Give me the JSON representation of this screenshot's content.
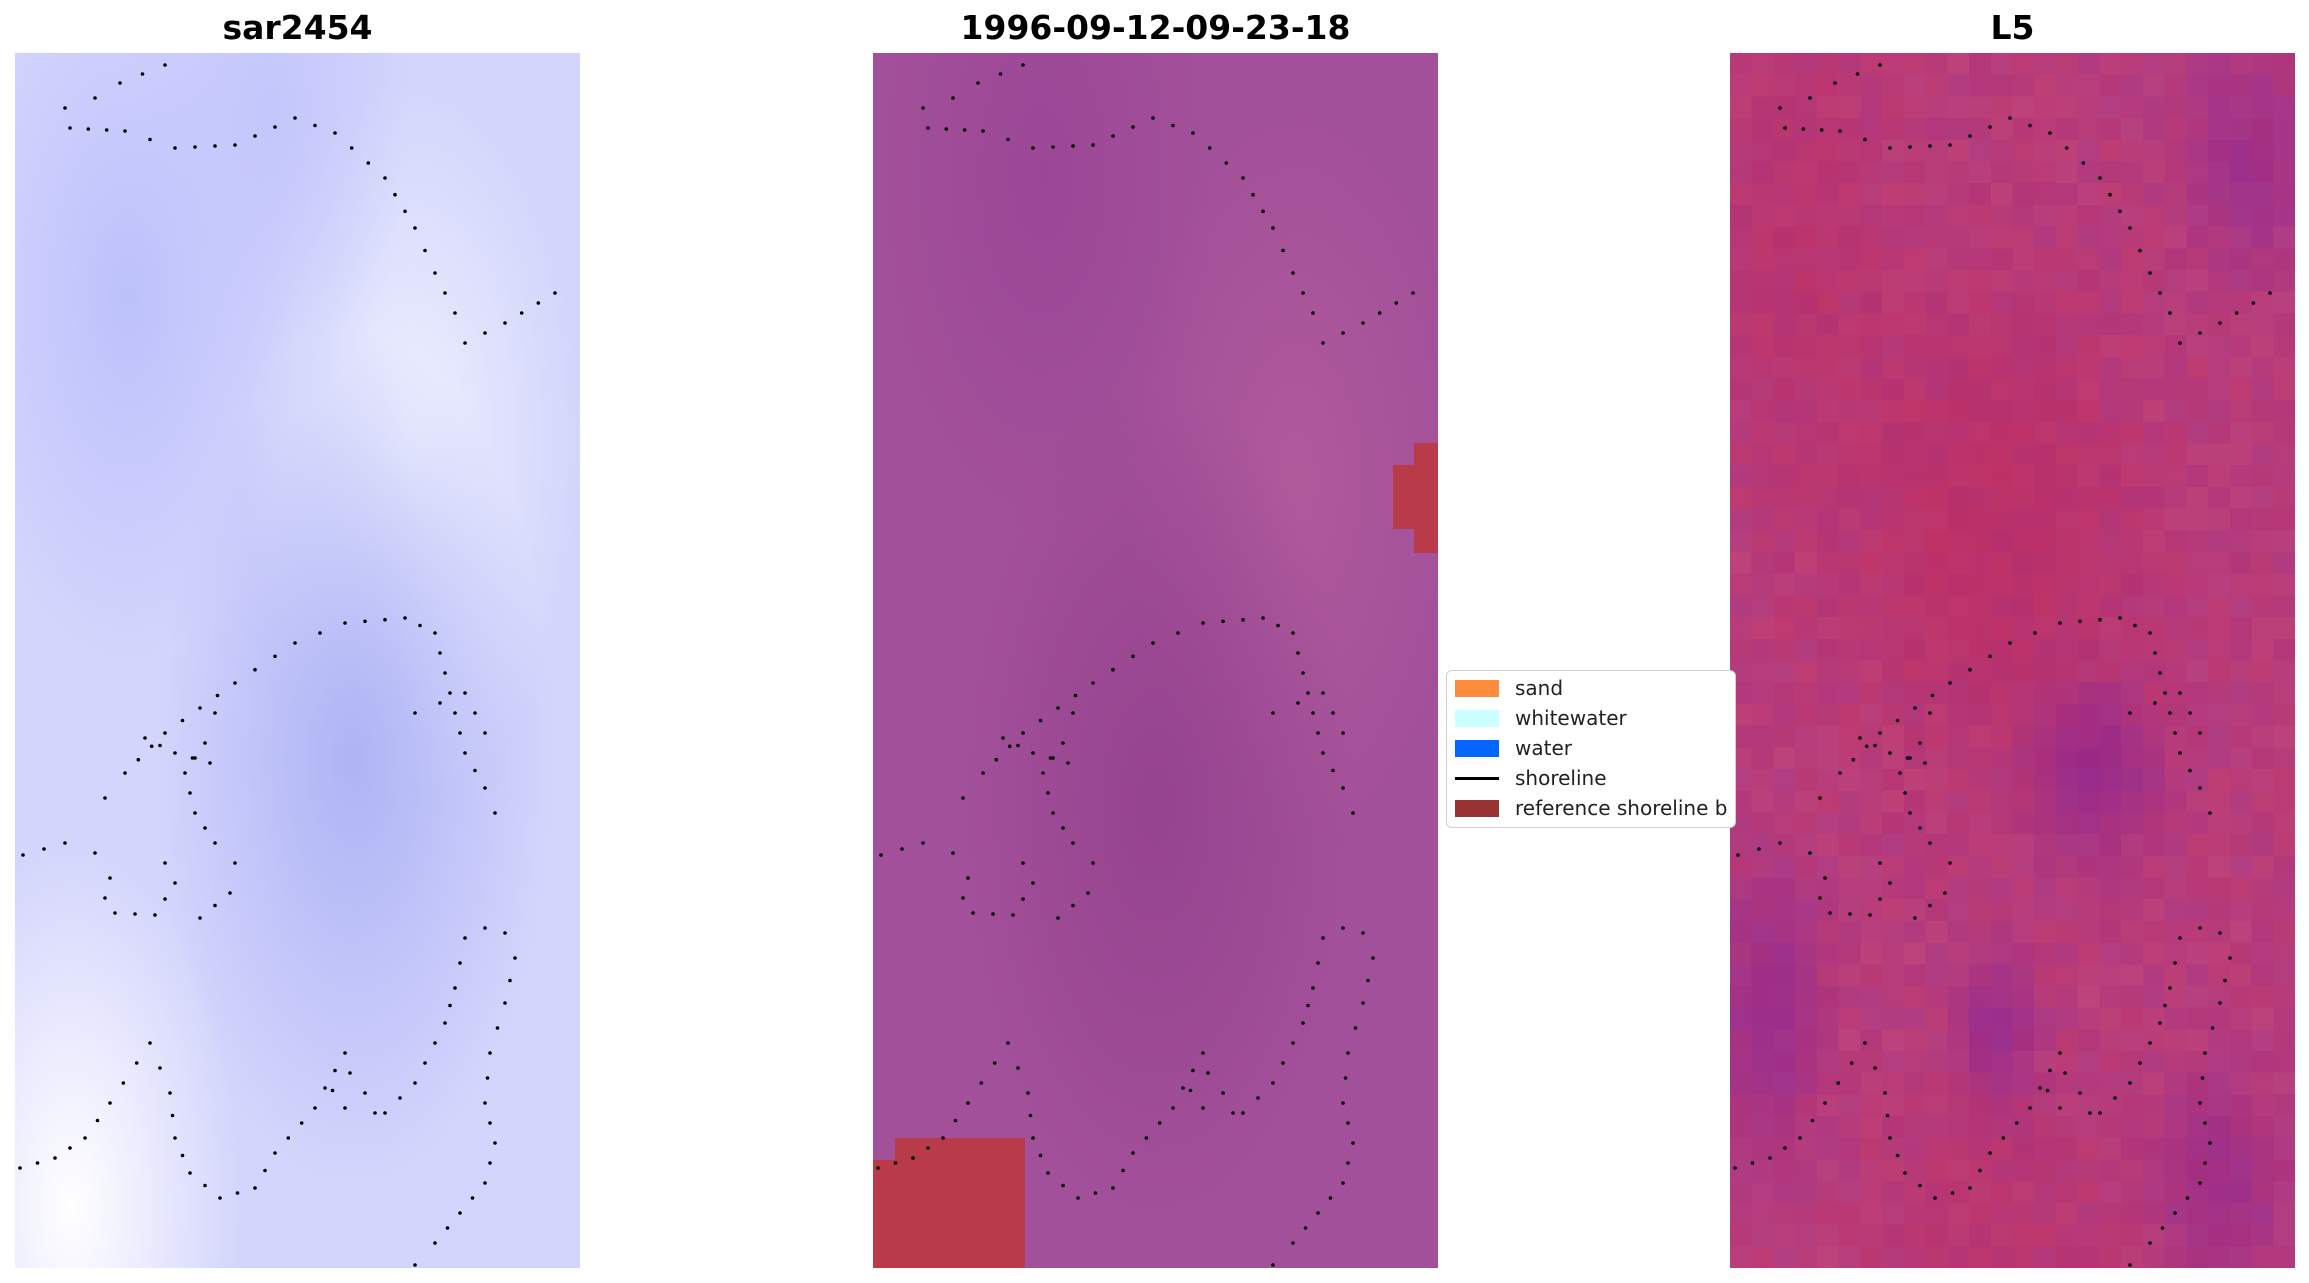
{
  "panels": [
    {
      "title": "sar2454"
    },
    {
      "title": "1996-09-12-09-23-18"
    },
    {
      "title": "L5"
    }
  ],
  "legend": {
    "items": [
      {
        "label": "sand",
        "color": "#ff8c3a",
        "kind": "patch"
      },
      {
        "label": "whitewater",
        "color": "#ccffff",
        "kind": "patch"
      },
      {
        "label": "water",
        "color": "#0066ff",
        "kind": "patch"
      },
      {
        "label": "shoreline",
        "color": "#000000",
        "kind": "line"
      },
      {
        "label": "reference shoreline b",
        "color": "#993333",
        "kind": "patch"
      }
    ]
  },
  "colors": {
    "panel1_tint": "#c0c4fb",
    "panel2_base": "#a3509a",
    "panel2_reference_patch": "#b93a48",
    "panel3_red": "#c01a49",
    "panel3_purple": "#6a14a8",
    "shoreline_dots": "#000000"
  }
}
